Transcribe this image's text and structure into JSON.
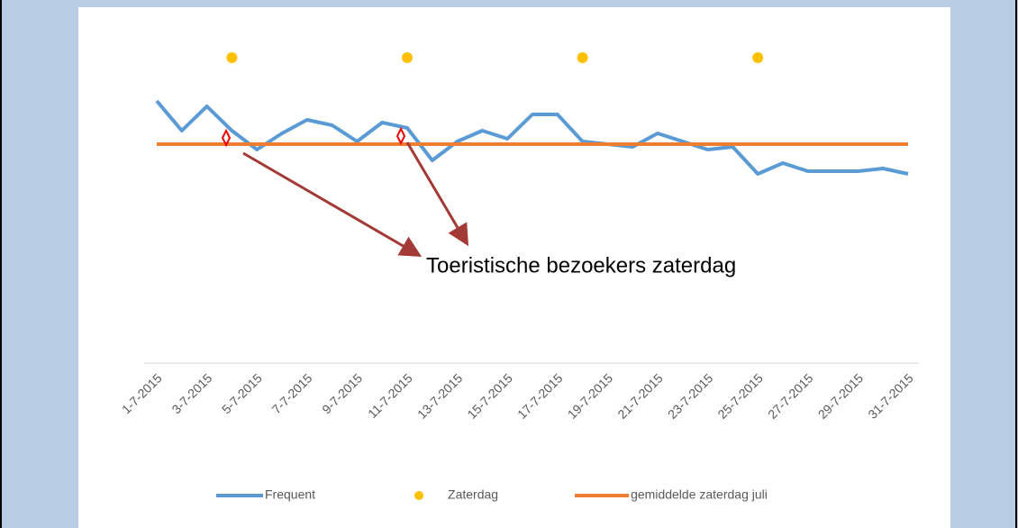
{
  "chart_data": {
    "type": "line",
    "annotation": "Toeristische bezoekers zaterdag",
    "categories": [
      "1-7-2015",
      null,
      "3-7-2015",
      null,
      "5-7-2015",
      null,
      "7-7-2015",
      null,
      "9-7-2015",
      null,
      "11-7-2015",
      null,
      "13-7-2015",
      null,
      "15-7-2015",
      null,
      "17-7-2015",
      null,
      "19-7-2015",
      null,
      "21-7-2015",
      null,
      "23-7-2015",
      null,
      "25-7-2015",
      null,
      "27-7-2015",
      null,
      "29-7-2015",
      null,
      "31-7-2015"
    ],
    "series": [
      {
        "name": "Frequent",
        "color": "#5b9bd5",
        "style": "line",
        "values": [
          97,
          86,
          95,
          86,
          79,
          85,
          90,
          88,
          82,
          89,
          87,
          75,
          82,
          86,
          83,
          92,
          92,
          82,
          81,
          80,
          85,
          82,
          79,
          80,
          70,
          74,
          71,
          71,
          71,
          72,
          70
        ]
      },
      {
        "name": "Zaterdag",
        "color": "#ffc000",
        "style": "dot",
        "values": [
          null,
          null,
          null,
          113,
          null,
          null,
          null,
          null,
          null,
          null,
          113,
          null,
          null,
          null,
          null,
          null,
          null,
          113,
          null,
          null,
          null,
          null,
          null,
          null,
          113,
          null,
          null,
          null,
          null,
          null,
          null
        ]
      },
      {
        "name": "gemiddelde zaterdag juli",
        "color": "#ed7d31",
        "style": "line",
        "values": [
          81,
          81,
          81,
          81,
          81,
          81,
          81,
          81,
          81,
          81,
          81,
          81,
          81,
          81,
          81,
          81,
          81,
          81,
          81,
          81,
          81,
          81,
          81,
          81,
          81,
          81,
          81,
          81,
          81,
          81,
          81
        ]
      }
    ],
    "ylim": [
      0,
      130
    ]
  }
}
